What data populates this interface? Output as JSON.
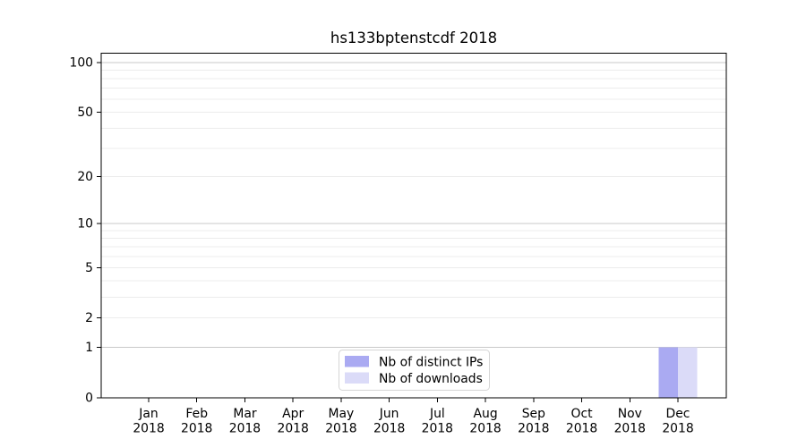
{
  "chart_data": {
    "type": "bar",
    "title": "hs133bptenstcdf 2018",
    "x_tick_labels": [
      {
        "month": "Jan",
        "year": "2018"
      },
      {
        "month": "Feb",
        "year": "2018"
      },
      {
        "month": "Mar",
        "year": "2018"
      },
      {
        "month": "Apr",
        "year": "2018"
      },
      {
        "month": "May",
        "year": "2018"
      },
      {
        "month": "Jun",
        "year": "2018"
      },
      {
        "month": "Jul",
        "year": "2018"
      },
      {
        "month": "Aug",
        "year": "2018"
      },
      {
        "month": "Sep",
        "year": "2018"
      },
      {
        "month": "Oct",
        "year": "2018"
      },
      {
        "month": "Nov",
        "year": "2018"
      },
      {
        "month": "Dec",
        "year": "2018"
      }
    ],
    "series": [
      {
        "name": "Nb of distinct IPs",
        "color": "#aaaaf2",
        "values": [
          0,
          0,
          0,
          0,
          0,
          0,
          0,
          0,
          0,
          0,
          0,
          1
        ]
      },
      {
        "name": "Nb of downloads",
        "color": "#dbdbf8",
        "values": [
          0,
          0,
          0,
          0,
          0,
          0,
          0,
          0,
          0,
          0,
          0,
          1
        ]
      }
    ],
    "y_axis": {
      "scale": "log10(value+1)",
      "tick_values": [
        0,
        1,
        2,
        5,
        10,
        20,
        50,
        100
      ],
      "major_gridlines": [
        1,
        10,
        100
      ],
      "minor_gridlines": [
        2,
        3,
        4,
        5,
        6,
        7,
        8,
        9,
        20,
        30,
        40,
        50,
        60,
        70,
        80,
        90
      ],
      "ylim": [
        0,
        113
      ]
    },
    "legend": {
      "position": "bottom-center"
    },
    "colors": {
      "major_grid": "#c9c9c9",
      "minor_grid": "#ececec",
      "axis": "#000000",
      "background": "#ffffff"
    }
  }
}
